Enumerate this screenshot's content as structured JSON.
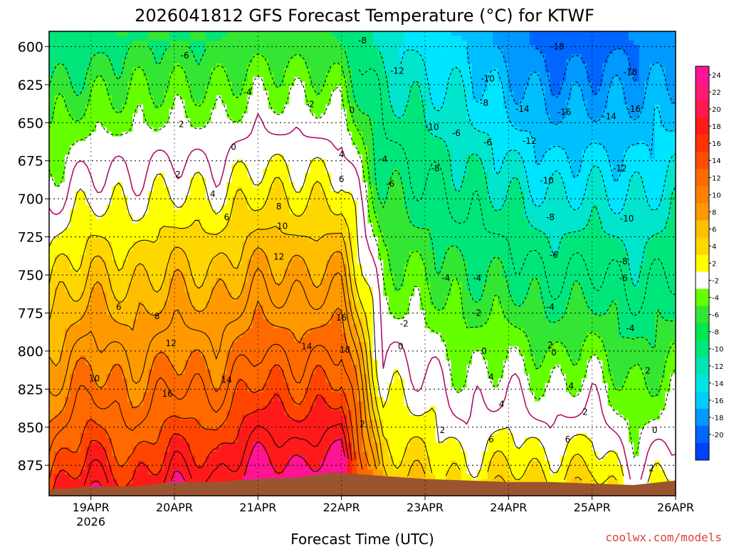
{
  "chart_data": {
    "type": "heatmap",
    "title": "2026041812 GFS Forecast Temperature (°C) for KTWF",
    "xlabel": "Forecast Time (UTC)",
    "ylabel": "",
    "credit": "coolwx.com/models",
    "x_ticks": [
      {
        "label": "19APR",
        "sub": "2026",
        "hours": 12
      },
      {
        "label": "20APR",
        "sub": "",
        "hours": 36
      },
      {
        "label": "21APR",
        "sub": "",
        "hours": 60
      },
      {
        "label": "22APR",
        "sub": "",
        "hours": 84
      },
      {
        "label": "23APR",
        "sub": "",
        "hours": 108
      },
      {
        "label": "24APR",
        "sub": "",
        "hours": 132
      },
      {
        "label": "25APR",
        "sub": "",
        "hours": 156
      },
      {
        "label": "26APR",
        "sub": "",
        "hours": 180
      }
    ],
    "xlim_hours": [
      0,
      180
    ],
    "y_ticks": [
      600,
      625,
      650,
      675,
      700,
      725,
      750,
      775,
      800,
      825,
      850,
      875
    ],
    "ylim_hpa": [
      590,
      895
    ],
    "surface_pressure_hpa": [
      {
        "h": 0,
        "p": 891
      },
      {
        "h": 12,
        "p": 889
      },
      {
        "h": 24,
        "p": 889
      },
      {
        "h": 36,
        "p": 886
      },
      {
        "h": 48,
        "p": 886
      },
      {
        "h": 60,
        "p": 884
      },
      {
        "h": 72,
        "p": 883
      },
      {
        "h": 80,
        "p": 880
      },
      {
        "h": 84,
        "p": 880
      },
      {
        "h": 96,
        "p": 882
      },
      {
        "h": 108,
        "p": 884
      },
      {
        "h": 120,
        "p": 885
      },
      {
        "h": 132,
        "p": 886
      },
      {
        "h": 144,
        "p": 886
      },
      {
        "h": 156,
        "p": 887
      },
      {
        "h": 168,
        "p": 888
      },
      {
        "h": 180,
        "p": 885
      }
    ],
    "isotherm_bands": [
      {
        "min": 22,
        "color": "#ff1493"
      },
      {
        "min": 18,
        "color": "#ff1a1a"
      },
      {
        "min": 16,
        "color": "#ff4500"
      },
      {
        "min": 12,
        "color": "#ff6a00"
      },
      {
        "min": 8,
        "color": "#ff9900"
      },
      {
        "min": 6,
        "color": "#ffbf00"
      },
      {
        "min": 4,
        "color": "#ffd700"
      },
      {
        "min": 2,
        "color": "#ffff00"
      },
      {
        "min": 0,
        "color": "#ffffff"
      },
      {
        "min": -2,
        "color": "#ffffff"
      },
      {
        "min": -4,
        "color": "#66ff00"
      },
      {
        "min": -6,
        "color": "#33e633"
      },
      {
        "min": -10,
        "color": "#00e67a"
      },
      {
        "min": -12,
        "color": "#00e5cc"
      },
      {
        "min": -14,
        "color": "#00e5ff"
      },
      {
        "min": -16,
        "color": "#00bfff"
      },
      {
        "min": -18,
        "color": "#0099ff"
      },
      {
        "min": -99,
        "color": "#0066ff"
      }
    ],
    "temperature_profiles": [
      {
        "h": 0,
        "sfc": 17,
        "p600": -8
      },
      {
        "h": 12,
        "sfc": 22,
        "p600": -7
      },
      {
        "h": 24,
        "sfc": 18,
        "p600": -6
      },
      {
        "h": 36,
        "sfc": 22,
        "p600": -6
      },
      {
        "h": 48,
        "sfc": 20,
        "p600": -6
      },
      {
        "h": 60,
        "sfc": 25,
        "p600": -5
      },
      {
        "h": 72,
        "sfc": 23,
        "p600": -5
      },
      {
        "h": 84,
        "sfc": 25,
        "p600": -6
      },
      {
        "h": 96,
        "sfc": 6,
        "p600": -11
      },
      {
        "h": 108,
        "sfc": 6,
        "p600": -13
      },
      {
        "h": 120,
        "sfc": 3,
        "p600": -14
      },
      {
        "h": 132,
        "sfc": 6,
        "p600": -17
      },
      {
        "h": 144,
        "sfc": 4,
        "p600": -19
      },
      {
        "h": 156,
        "sfc": 6,
        "p600": -19
      },
      {
        "h": 168,
        "sfc": 1,
        "p600": -18
      },
      {
        "h": 180,
        "sfc": 3,
        "p600": -17
      }
    ],
    "contour_labels": [
      {
        "v": "-8",
        "h": 90,
        "p": 596
      },
      {
        "v": "-6",
        "h": 39,
        "p": 606
      },
      {
        "v": "-12",
        "h": 100,
        "p": 616
      },
      {
        "v": "-18",
        "h": 146,
        "p": 600
      },
      {
        "v": "-18",
        "h": 167,
        "p": 617
      },
      {
        "v": "-10",
        "h": 126,
        "p": 621
      },
      {
        "v": "-4",
        "h": 57,
        "p": 630
      },
      {
        "v": "-2",
        "h": 75,
        "p": 638
      },
      {
        "v": "-8",
        "h": 125,
        "p": 637
      },
      {
        "v": "0",
        "h": 87,
        "p": 642
      },
      {
        "v": "-14",
        "h": 136,
        "p": 641
      },
      {
        "v": "-16",
        "h": 148,
        "p": 643
      },
      {
        "v": "-16",
        "h": 168,
        "p": 641
      },
      {
        "v": "-14",
        "h": 161,
        "p": 646
      },
      {
        "v": "2",
        "h": 38,
        "p": 651
      },
      {
        "v": "-10",
        "h": 110,
        "p": 653
      },
      {
        "v": "-6",
        "h": 117,
        "p": 657
      },
      {
        "v": "-12",
        "h": 138,
        "p": 662
      },
      {
        "v": "-6",
        "h": 126,
        "p": 663
      },
      {
        "v": "0",
        "h": 53,
        "p": 666
      },
      {
        "v": "4",
        "h": 84,
        "p": 671
      },
      {
        "v": "-4",
        "h": 96,
        "p": 674
      },
      {
        "v": "-8",
        "h": 111,
        "p": 680
      },
      {
        "v": "-12",
        "h": 164,
        "p": 680
      },
      {
        "v": "2",
        "h": 37,
        "p": 684
      },
      {
        "v": "6",
        "h": 84,
        "p": 687
      },
      {
        "v": "-6",
        "h": 98,
        "p": 690
      },
      {
        "v": "-10",
        "h": 143,
        "p": 688
      },
      {
        "v": "4",
        "h": 47,
        "p": 697
      },
      {
        "v": "8",
        "h": 66,
        "p": 705
      },
      {
        "v": "-8",
        "h": 144,
        "p": 712
      },
      {
        "v": "6",
        "h": 51,
        "p": 712
      },
      {
        "v": "-10",
        "h": 166,
        "p": 713
      },
      {
        "v": "10",
        "h": 67,
        "p": 718
      },
      {
        "v": "-6",
        "h": 145,
        "p": 737
      },
      {
        "v": "12",
        "h": 66,
        "p": 738
      },
      {
        "v": "-8",
        "h": 165,
        "p": 741
      },
      {
        "v": "-4",
        "h": 114,
        "p": 752
      },
      {
        "v": "-4",
        "h": 123,
        "p": 752
      },
      {
        "v": "-6",
        "h": 165,
        "p": 752
      },
      {
        "v": "6",
        "h": 20,
        "p": 771
      },
      {
        "v": "8",
        "h": 31,
        "p": 777
      },
      {
        "v": "-4",
        "h": 144,
        "p": 771
      },
      {
        "v": "-2",
        "h": 123,
        "p": 775
      },
      {
        "v": "16",
        "h": 84,
        "p": 778
      },
      {
        "v": "-2",
        "h": 102,
        "p": 782
      },
      {
        "v": "-4",
        "h": 167,
        "p": 785
      },
      {
        "v": "12",
        "h": 35,
        "p": 795
      },
      {
        "v": "14",
        "h": 74,
        "p": 797
      },
      {
        "v": "0",
        "h": 101,
        "p": 797
      },
      {
        "v": "18",
        "h": 85,
        "p": 799
      },
      {
        "v": "2",
        "h": 144,
        "p": 796
      },
      {
        "v": "0",
        "h": 125,
        "p": 800
      },
      {
        "v": "0",
        "h": 145,
        "p": 801
      },
      {
        "v": "10",
        "h": 13,
        "p": 818
      },
      {
        "v": "14",
        "h": 51,
        "p": 819
      },
      {
        "v": "4",
        "h": 127,
        "p": 817
      },
      {
        "v": "2",
        "h": 172,
        "p": 813
      },
      {
        "v": "4",
        "h": 150,
        "p": 823
      },
      {
        "v": "16",
        "h": 34,
        "p": 828
      },
      {
        "v": "4",
        "h": 130,
        "p": 835
      },
      {
        "v": "2",
        "h": 90,
        "p": 848
      },
      {
        "v": "2",
        "h": 154,
        "p": 840
      },
      {
        "v": "2",
        "h": 113,
        "p": 852
      },
      {
        "v": "0",
        "h": 174,
        "p": 852
      },
      {
        "v": "6",
        "h": 127,
        "p": 858
      },
      {
        "v": "6",
        "h": 149,
        "p": 858
      },
      {
        "v": "2",
        "h": 173,
        "p": 877
      }
    ],
    "colorbar": {
      "labels": [
        "24",
        "22",
        "20",
        "18",
        "16",
        "14",
        "12",
        "10",
        "8",
        "6",
        "4",
        "2",
        "-2",
        "-4",
        "-6",
        "-8",
        "-10",
        "-12",
        "-14",
        "-16",
        "-18",
        "-20"
      ],
      "colors": [
        "#ff1493",
        "#ff1a75",
        "#ff1a4d",
        "#ff1a1a",
        "#ff3300",
        "#ff4d00",
        "#ff6a00",
        "#ff8000",
        "#ff9900",
        "#ffbf00",
        "#ffd700",
        "#ffff00",
        "#ffffff",
        "#66ff00",
        "#33e633",
        "#00e64d",
        "#00e67a",
        "#00e5b3",
        "#00e5e5",
        "#00ccff",
        "#0099ff",
        "#0066ff",
        "#0040ff"
      ]
    }
  }
}
